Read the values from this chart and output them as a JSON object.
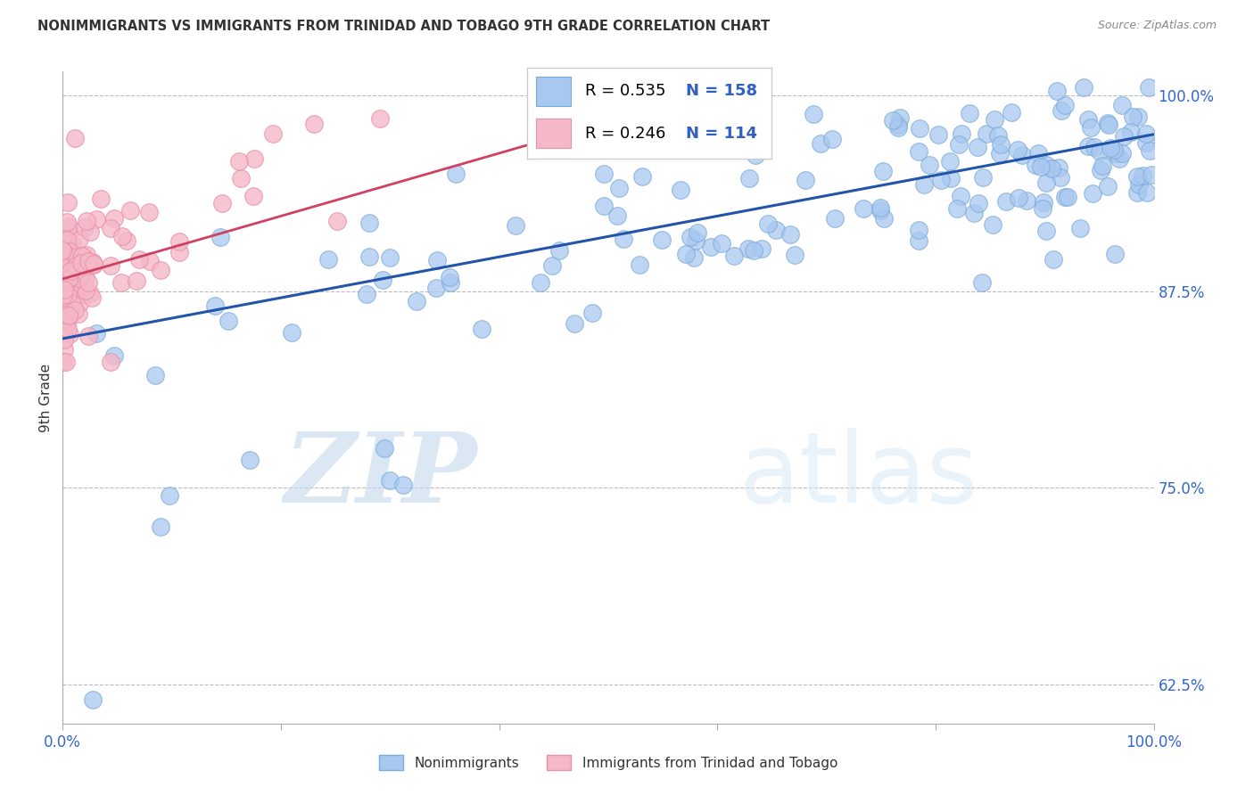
{
  "title": "NONIMMIGRANTS VS IMMIGRANTS FROM TRINIDAD AND TOBAGO 9TH GRADE CORRELATION CHART",
  "source": "Source: ZipAtlas.com",
  "ylabel": "9th Grade",
  "xlim": [
    0.0,
    1.0
  ],
  "ylim": [
    0.6,
    1.015
  ],
  "yticks": [
    0.625,
    0.75,
    0.875,
    1.0
  ],
  "ytick_labels": [
    "62.5%",
    "75.0%",
    "87.5%",
    "100.0%"
  ],
  "xticks": [
    0.0,
    0.2,
    0.4,
    0.6,
    0.8,
    1.0
  ],
  "xtick_labels": [
    "0.0%",
    "",
    "",
    "",
    "",
    "100.0%"
  ],
  "blue_color": "#a8c8f0",
  "blue_edge_color": "#7aaad8",
  "pink_color": "#f5b8c8",
  "pink_edge_color": "#e890a8",
  "blue_line_color": "#2255aa",
  "pink_line_color": "#d04060",
  "legend_R_color": "#000000",
  "legend_N_color": "#3060c0",
  "R_blue": 0.535,
  "N_blue": 158,
  "R_pink": 0.246,
  "N_pink": 114,
  "watermark_zip": "ZIP",
  "watermark_atlas": "atlas",
  "background_color": "#ffffff",
  "grid_color": "#bbbbbb",
  "axis_color": "#aaaaaa",
  "title_color": "#333333",
  "source_color": "#888888",
  "ylabel_color": "#333333",
  "tick_label_color": "#3366cc"
}
